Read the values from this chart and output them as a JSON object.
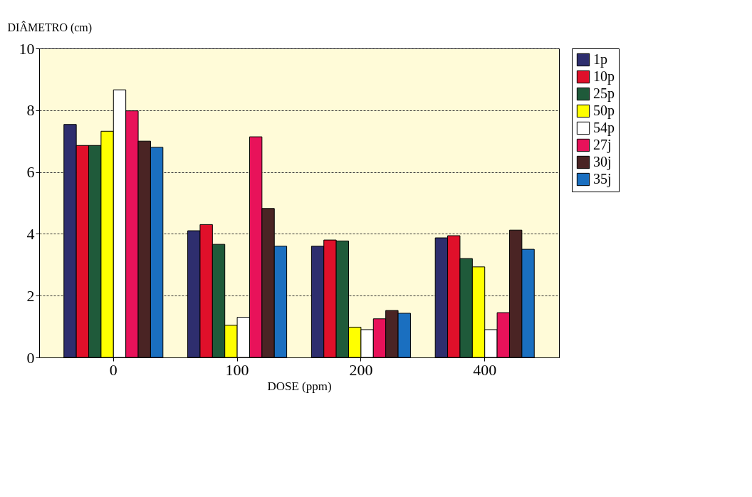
{
  "chart_data": {
    "type": "bar",
    "xlabel": "DOSE (ppm)",
    "ylabel": "DIÂMETRO (cm)",
    "categories": [
      "0",
      "100",
      "200",
      "400"
    ],
    "series": [
      {
        "name": "1p",
        "color": "#2e2e6e",
        "values": [
          7.54,
          4.1,
          3.6,
          3.87
        ]
      },
      {
        "name": "10p",
        "color": "#e0102a",
        "values": [
          6.86,
          4.3,
          3.8,
          3.94
        ]
      },
      {
        "name": "25p",
        "color": "#1f5a3a",
        "values": [
          6.86,
          3.66,
          3.77,
          3.2
        ]
      },
      {
        "name": "50p",
        "color": "#ffff00",
        "values": [
          7.32,
          1.04,
          0.98,
          2.93
        ]
      },
      {
        "name": "54p",
        "color": "#ffffff",
        "values": [
          8.66,
          1.3,
          0.9,
          0.9
        ]
      },
      {
        "name": "27j",
        "color": "#e8125a",
        "values": [
          7.98,
          7.14,
          1.25,
          1.45
        ]
      },
      {
        "name": "30j",
        "color": "#4a2424",
        "values": [
          7.0,
          4.82,
          1.52,
          4.12
        ]
      },
      {
        "name": "35j",
        "color": "#1a6fc0",
        "values": [
          6.8,
          3.6,
          1.43,
          3.5
        ]
      }
    ],
    "ylim": [
      0,
      10
    ],
    "yticks": [
      0,
      2,
      4,
      6,
      8,
      10
    ],
    "grid": "y",
    "legend": "right"
  }
}
